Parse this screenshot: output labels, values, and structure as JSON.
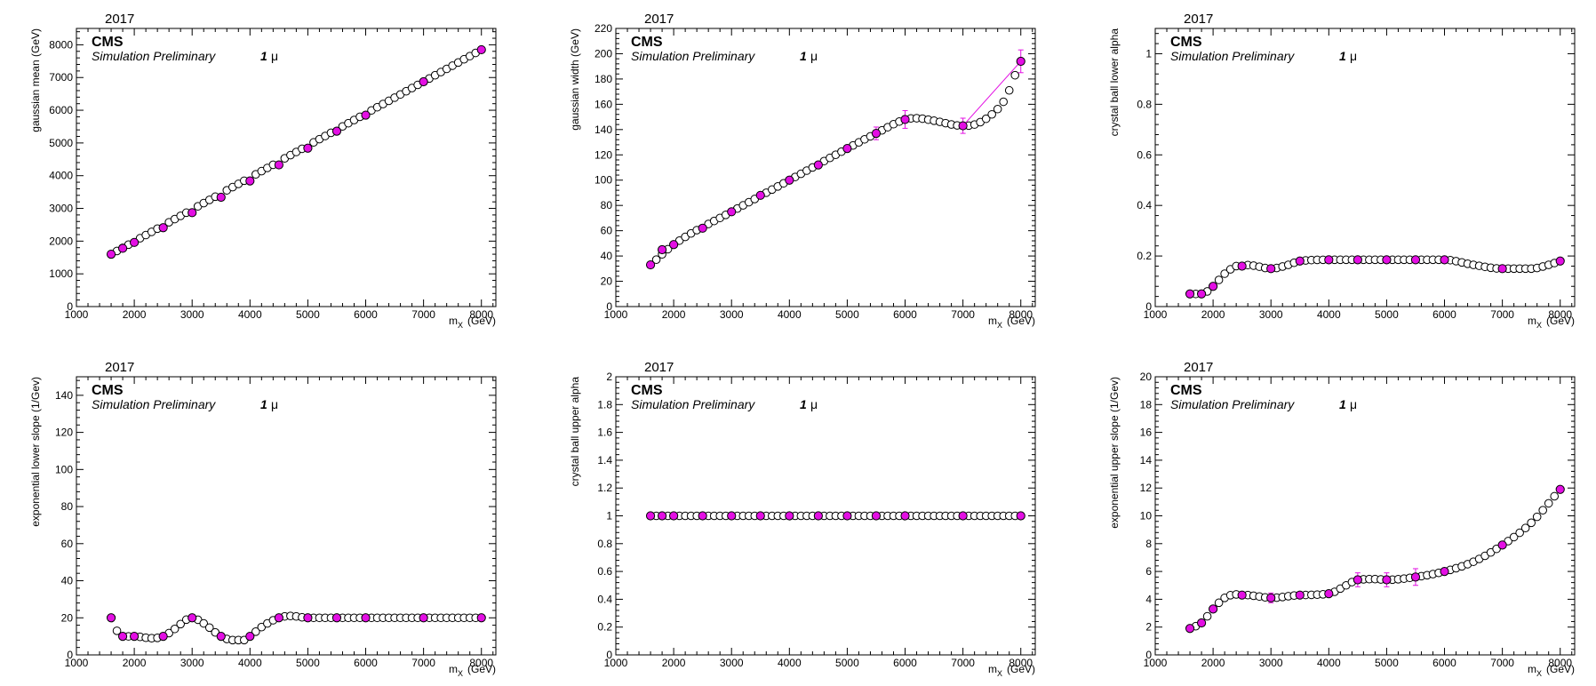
{
  "colors": {
    "accent": "#e30fe3",
    "frame": "#000000",
    "open_marker_fill": "#ffffff"
  },
  "chart_data": [
    {
      "type": "scatter",
      "year": "2017",
      "cms": "CMS",
      "subtitle": "Simulation Preliminary",
      "lepton_number": "1",
      "lepton_symbol": "μ",
      "ylabel": "gaussian mean (GeV)",
      "xlabel_main": "m",
      "xlabel_sub": "X",
      "xlabel_unit": "(GeV)",
      "xlim": [
        1000,
        8250
      ],
      "ylim": [
        0,
        8500
      ],
      "xticks": [
        1000,
        2000,
        3000,
        4000,
        5000,
        6000,
        7000,
        8000
      ],
      "yticks": [
        0,
        1000,
        2000,
        3000,
        4000,
        5000,
        6000,
        7000,
        8000
      ],
      "ytick_labels": [
        "0",
        "1000",
        "2000",
        "3000",
        "4000",
        "5000",
        "6000",
        "7000",
        "8000"
      ],
      "series": [
        {
          "style": "filled",
          "x": [
            1600,
            1800,
            2000,
            2500,
            3000,
            3500,
            4000,
            4500,
            5000,
            5500,
            6000,
            7000,
            8000
          ],
          "y": [
            1600,
            1780,
            1960,
            2410,
            2870,
            3340,
            3840,
            4330,
            4840,
            5360,
            5850,
            6870,
            7850
          ]
        },
        {
          "style": "open",
          "x_range": [
            1700,
            7900
          ],
          "x_step": 100,
          "knots_x": [
            1600,
            8000
          ],
          "knots_y": [
            1600,
            7850
          ]
        }
      ]
    },
    {
      "type": "scatter",
      "year": "2017",
      "cms": "CMS",
      "subtitle": "Simulation Preliminary",
      "lepton_number": "1",
      "lepton_symbol": "μ",
      "ylabel": "gaussian width (GeV)",
      "xlabel_main": "m",
      "xlabel_sub": "X",
      "xlabel_unit": "(GeV)",
      "xlim": [
        1000,
        8250
      ],
      "ylim": [
        0,
        220
      ],
      "xticks": [
        1000,
        2000,
        3000,
        4000,
        5000,
        6000,
        7000,
        8000
      ],
      "yticks": [
        0,
        20,
        40,
        60,
        80,
        100,
        120,
        140,
        160,
        180,
        200,
        220
      ],
      "ytick_labels": [
        "0",
        "20",
        "40",
        "60",
        "80",
        "100",
        "120",
        "140",
        "160",
        "180",
        "200",
        "220"
      ],
      "series": [
        {
          "style": "filled",
          "x": [
            1600,
            1800,
            2000,
            2500,
            3000,
            3500,
            4000,
            4500,
            5000,
            5500,
            6000,
            7000,
            8000
          ],
          "y": [
            33,
            45,
            49,
            62,
            75,
            88,
            100,
            112,
            125,
            137,
            148,
            143,
            194
          ],
          "yerr": [
            0,
            0,
            0,
            0,
            0,
            0,
            0,
            0,
            0,
            5,
            7,
            6,
            9
          ]
        },
        {
          "style": "open",
          "x_range": [
            1700,
            7900
          ],
          "x_step": 100,
          "knots_x": [
            1600,
            2000,
            3000,
            4000,
            5000,
            5500,
            6000,
            6200,
            6500,
            7000,
            7200,
            7500,
            7700,
            7800,
            7900,
            8000
          ],
          "knots_y": [
            33,
            49,
            75,
            100,
            125,
            137,
            148,
            149,
            147,
            143,
            144,
            152,
            162,
            171,
            183,
            194
          ]
        },
        {
          "style": "line",
          "x": [
            7000,
            8000
          ],
          "y": [
            143,
            194
          ]
        }
      ]
    },
    {
      "type": "scatter",
      "year": "2017",
      "cms": "CMS",
      "subtitle": "Simulation Preliminary",
      "lepton_number": "1",
      "lepton_symbol": "μ",
      "ylabel": "crystal ball lower alpha",
      "xlabel_main": "m",
      "xlabel_sub": "X",
      "xlabel_unit": "(GeV)",
      "xlim": [
        1000,
        8250
      ],
      "ylim": [
        0,
        1.1
      ],
      "xticks": [
        1000,
        2000,
        3000,
        4000,
        5000,
        6000,
        7000,
        8000
      ],
      "yticks": [
        0,
        0.2,
        0.4,
        0.6,
        0.8,
        1
      ],
      "ytick_labels": [
        "0",
        "0.2",
        "0.4",
        "0.6",
        "0.8",
        "1"
      ],
      "series": [
        {
          "style": "filled",
          "x": [
            1600,
            1800,
            2000,
            2500,
            3000,
            3500,
            4000,
            4500,
            5000,
            5500,
            6000,
            7000,
            8000
          ],
          "y": [
            0.05,
            0.05,
            0.08,
            0.16,
            0.15,
            0.18,
            0.185,
            0.185,
            0.185,
            0.185,
            0.185,
            0.15,
            0.18
          ]
        },
        {
          "style": "open",
          "x_range": [
            1700,
            7900
          ],
          "x_step": 100,
          "knots_x": [
            1600,
            1800,
            2000,
            2200,
            2500,
            2700,
            3000,
            3300,
            3500,
            4000,
            5000,
            6000,
            6500,
            7000,
            7500,
            7800,
            8000
          ],
          "knots_y": [
            0.05,
            0.05,
            0.08,
            0.13,
            0.165,
            0.162,
            0.15,
            0.165,
            0.18,
            0.185,
            0.185,
            0.185,
            0.165,
            0.15,
            0.15,
            0.165,
            0.18
          ]
        }
      ]
    },
    {
      "type": "scatter",
      "year": "2017",
      "cms": "CMS",
      "subtitle": "Simulation Preliminary",
      "lepton_number": "1",
      "lepton_symbol": "μ",
      "ylabel": "exponential lower slope (1/Gev)",
      "xlabel_main": "m",
      "xlabel_sub": "X",
      "xlabel_unit": "(GeV)",
      "xlim": [
        1000,
        8250
      ],
      "ylim": [
        0,
        150
      ],
      "xticks": [
        1000,
        2000,
        3000,
        4000,
        5000,
        6000,
        7000,
        8000
      ],
      "yticks": [
        0,
        20,
        40,
        60,
        80,
        100,
        120,
        140
      ],
      "ytick_labels": [
        "0",
        "20",
        "40",
        "60",
        "80",
        "100",
        "120",
        "140"
      ],
      "series": [
        {
          "style": "filled",
          "x": [
            1600,
            1800,
            2000,
            2500,
            3000,
            3500,
            4000,
            4500,
            5000,
            5500,
            6000,
            7000,
            8000
          ],
          "y": [
            20,
            10,
            10,
            10,
            20,
            10,
            10,
            20,
            20,
            20,
            20,
            20,
            20
          ]
        },
        {
          "style": "open",
          "x_range": [
            1700,
            7900
          ],
          "x_step": 100,
          "knots_x": [
            1600,
            1700,
            1800,
            2000,
            2300,
            2500,
            2700,
            2900,
            3000,
            3200,
            3500,
            3700,
            3900,
            4000,
            4200,
            4500,
            4700,
            5000,
            6000,
            8000
          ],
          "knots_y": [
            20,
            13,
            10,
            10,
            9,
            10,
            14,
            19,
            20,
            17,
            10,
            8,
            8,
            10,
            15,
            20,
            21,
            20,
            20,
            20
          ]
        }
      ]
    },
    {
      "type": "scatter",
      "year": "2017",
      "cms": "CMS",
      "subtitle": "Simulation Preliminary",
      "lepton_number": "1",
      "lepton_symbol": "μ",
      "ylabel": "crystal ball upper alpha",
      "xlabel_main": "m",
      "xlabel_sub": "X",
      "xlabel_unit": "(GeV)",
      "xlim": [
        1000,
        8250
      ],
      "ylim": [
        0,
        2
      ],
      "xticks": [
        1000,
        2000,
        3000,
        4000,
        5000,
        6000,
        7000,
        8000
      ],
      "yticks": [
        0,
        0.2,
        0.4,
        0.6,
        0.8,
        1,
        1.2,
        1.4,
        1.6,
        1.8,
        2
      ],
      "ytick_labels": [
        "0",
        "0.2",
        "0.4",
        "0.6",
        "0.8",
        "1",
        "1.2",
        "1.4",
        "1.6",
        "1.8",
        "2"
      ],
      "series": [
        {
          "style": "filled",
          "x": [
            1600,
            1800,
            2000,
            2500,
            3000,
            3500,
            4000,
            4500,
            5000,
            5500,
            6000,
            7000,
            8000
          ],
          "y": [
            1,
            1,
            1,
            1,
            1,
            1,
            1,
            1,
            1,
            1,
            1,
            1,
            1
          ]
        },
        {
          "style": "open",
          "x_range": [
            1700,
            7900
          ],
          "x_step": 100,
          "knots_x": [
            1600,
            8000
          ],
          "knots_y": [
            1,
            1
          ]
        }
      ]
    },
    {
      "type": "scatter",
      "year": "2017",
      "cms": "CMS",
      "subtitle": "Simulation Preliminary",
      "lepton_number": "1",
      "lepton_symbol": "μ",
      "ylabel": "exponential upper slope (1/Gev)",
      "xlabel_main": "m",
      "xlabel_sub": "X",
      "xlabel_unit": "(GeV)",
      "xlim": [
        1000,
        8250
      ],
      "ylim": [
        0,
        20
      ],
      "xticks": [
        1000,
        2000,
        3000,
        4000,
        5000,
        6000,
        7000,
        8000
      ],
      "yticks": [
        0,
        2,
        4,
        6,
        8,
        10,
        12,
        14,
        16,
        18,
        20
      ],
      "ytick_labels": [
        "0",
        "2",
        "4",
        "6",
        "8",
        "10",
        "12",
        "14",
        "16",
        "18",
        "20"
      ],
      "series": [
        {
          "style": "filled",
          "x": [
            1600,
            1800,
            2000,
            2500,
            3000,
            3500,
            4000,
            4500,
            5000,
            5500,
            6000,
            7000,
            8000
          ],
          "y": [
            1.9,
            2.3,
            3.3,
            4.3,
            4.1,
            4.3,
            4.4,
            5.4,
            5.4,
            5.6,
            6.0,
            7.9,
            11.9
          ],
          "yerr": [
            0,
            0,
            0,
            0,
            0.35,
            0,
            0,
            0.5,
            0.5,
            0.6,
            0,
            0,
            0
          ]
        },
        {
          "style": "open",
          "x_range": [
            1700,
            7900
          ],
          "x_step": 100,
          "knots_x": [
            1600,
            1800,
            2000,
            2200,
            2400,
            2600,
            2800,
            3000,
            3500,
            4000,
            4300,
            4500,
            4800,
            5000,
            5500,
            6000,
            6500,
            7000,
            7500,
            8000
          ],
          "knots_y": [
            1.9,
            2.3,
            3.3,
            4.1,
            4.35,
            4.3,
            4.2,
            4.1,
            4.3,
            4.4,
            5.0,
            5.4,
            5.45,
            5.4,
            5.6,
            6.0,
            6.7,
            7.9,
            9.5,
            11.9
          ]
        }
      ]
    }
  ]
}
